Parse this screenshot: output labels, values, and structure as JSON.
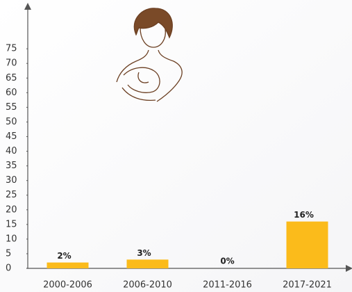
{
  "chart_data": {
    "type": "bar",
    "categories": [
      "2000-2006",
      "2006-2010",
      "2011-2016",
      "2017-2021"
    ],
    "values": [
      2,
      3,
      0,
      16
    ],
    "value_labels": [
      "2%",
      "3%",
      "0%",
      "16%"
    ],
    "color": "#fbbb1b",
    "ylim": [
      0,
      90
    ],
    "yticks": [
      0,
      5,
      10,
      15,
      20,
      25,
      30,
      35,
      40,
      45,
      50,
      55,
      60,
      65,
      70,
      75
    ]
  }
}
